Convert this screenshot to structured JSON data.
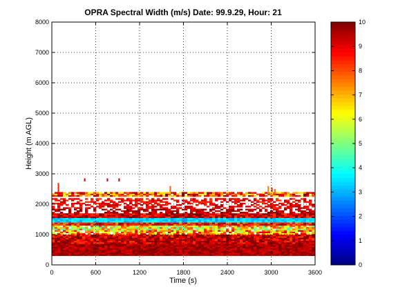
{
  "chart_data": {
    "type": "heatmap",
    "title": "OPRA Spectral Width (m/s)  Date: 99.9.29, Hour: 21",
    "xlabel": "Time (s)",
    "ylabel": "Height (m AGL)",
    "xlim": [
      0,
      3600
    ],
    "ylim": [
      0,
      8000
    ],
    "x_ticks": [
      0,
      600,
      1200,
      1800,
      2400,
      3000,
      3600
    ],
    "y_ticks": [
      0,
      1000,
      2000,
      3000,
      4000,
      5000,
      6000,
      7000,
      8000
    ],
    "colorbar": {
      "range": [
        0,
        10
      ],
      "ticks": [
        0,
        1,
        2,
        3,
        4,
        5,
        6,
        7,
        8,
        9,
        10
      ],
      "colormap": "jet"
    },
    "grid": true,
    "bands": [
      {
        "y0": 300,
        "y1": 700,
        "value": 9.8,
        "variability": "low"
      },
      {
        "y0": 700,
        "y1": 1000,
        "value": 9.6,
        "variability": "medium"
      },
      {
        "y0": 1000,
        "y1": 1150,
        "value": 7.2,
        "variability": "high"
      },
      {
        "y0": 1150,
        "y1": 1300,
        "value": 6.3,
        "variability": "high"
      },
      {
        "y0": 1300,
        "y1": 1400,
        "value": 8.8,
        "variability": "medium"
      },
      {
        "y0": 1400,
        "y1": 1550,
        "value": 3.6,
        "variability": "low"
      },
      {
        "y0": 1550,
        "y1": 1700,
        "value": 9.5,
        "variability": "medium"
      },
      {
        "y0": 1700,
        "y1": 1850,
        "value": 9.7,
        "variability": "sparse"
      },
      {
        "y0": 1850,
        "y1": 2000,
        "value": 9.2,
        "variability": "sparse"
      },
      {
        "y0": 2000,
        "y1": 2200,
        "value": 9.0,
        "variability": "sparse"
      },
      {
        "y0": 2250,
        "y1": 2400,
        "value": 8.0,
        "variability": "high"
      }
    ],
    "spikes": [
      {
        "x": 90,
        "y0": 2400,
        "y1": 2700,
        "value": 8.5
      },
      {
        "x": 450,
        "y0": 2750,
        "y1": 2850,
        "value": 9.3
      },
      {
        "x": 760,
        "y0": 2750,
        "y1": 2850,
        "value": 9.3
      },
      {
        "x": 920,
        "y0": 2750,
        "y1": 2850,
        "value": 9.3
      },
      {
        "x": 1620,
        "y0": 2400,
        "y1": 2600,
        "value": 7.8
      },
      {
        "x": 2960,
        "y0": 2400,
        "y1": 2600,
        "value": 7.5
      },
      {
        "x": 3010,
        "y0": 2400,
        "y1": 2550,
        "value": 8.5
      },
      {
        "x": 3050,
        "y0": 2400,
        "y1": 2500,
        "value": 7.8
      }
    ]
  }
}
